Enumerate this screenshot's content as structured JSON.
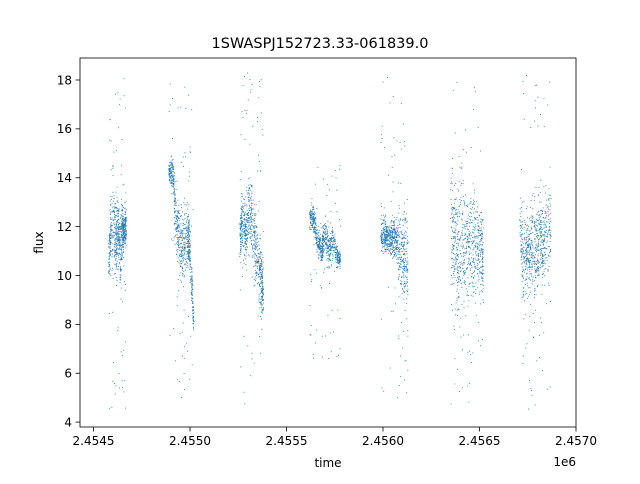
{
  "chart_data": {
    "type": "scatter",
    "title": "1SWASPJ152723.33-061839.0",
    "xlabel": "time",
    "ylabel": "flux",
    "x_offset_label": "1e6",
    "xlim": [
      2.45443,
      2.457
    ],
    "ylim": [
      3.8,
      18.9
    ],
    "x_ticks": [
      2.4545,
      2.455,
      2.4555,
      2.456,
      2.4565,
      2.457
    ],
    "x_tick_labels": [
      "2.4545",
      "2.4550",
      "2.4555",
      "2.4560",
      "2.4565",
      "2.4570"
    ],
    "y_ticks": [
      4,
      6,
      8,
      10,
      12,
      14,
      16,
      18
    ],
    "y_tick_labels": [
      "4",
      "6",
      "8",
      "10",
      "12",
      "14",
      "16",
      "18"
    ],
    "grid": false,
    "marker_color": "#1f77b4",
    "marker_size": "tiny",
    "seasons": [
      {
        "x_start": 2.45458,
        "x_end": 2.45467,
        "y_min": 4.5,
        "y_max": 18.2,
        "core": [
          {
            "x": 2.45458,
            "y_low": 9.6,
            "y_high": 11.6
          },
          {
            "x": 2.45459,
            "y_low": 9.4,
            "y_high": 14.8
          },
          {
            "x": 2.45461,
            "y_low": 9.8,
            "y_high": 14.2
          },
          {
            "x": 2.45462,
            "y_low": 9.0,
            "y_high": 13.8
          },
          {
            "x": 2.45463,
            "y_low": 10.2,
            "y_high": 13.4
          },
          {
            "x": 2.45464,
            "y_low": 8.6,
            "y_high": 12.8
          },
          {
            "x": 2.45465,
            "y_low": 10.5,
            "y_high": 13.6
          },
          {
            "x": 2.45466,
            "y_low": 10.8,
            "y_high": 12.6
          },
          {
            "x": 2.45467,
            "y_low": 11.0,
            "y_high": 13.5
          }
        ]
      },
      {
        "x_start": 2.45489,
        "x_end": 2.45502,
        "y_min": 4.7,
        "y_max": 18.0,
        "core": [
          {
            "x": 2.45489,
            "y_low": 13.8,
            "y_high": 14.8
          },
          {
            "x": 2.45491,
            "y_low": 13.2,
            "y_high": 15.5
          },
          {
            "x": 2.45493,
            "y_low": 10.5,
            "y_high": 13.5
          },
          {
            "x": 2.45495,
            "y_low": 9.5,
            "y_high": 13.0
          },
          {
            "x": 2.45497,
            "y_low": 9.0,
            "y_high": 13.4
          },
          {
            "x": 2.45499,
            "y_low": 10.0,
            "y_high": 13.6
          },
          {
            "x": 2.455,
            "y_low": 9.8,
            "y_high": 12.4
          },
          {
            "x": 2.45502,
            "y_low": 7.0,
            "y_high": 9.0
          }
        ]
      },
      {
        "x_start": 2.45526,
        "x_end": 2.45538,
        "y_min": 4.5,
        "y_max": 18.3,
        "core": [
          {
            "x": 2.45526,
            "y_low": 10.0,
            "y_high": 12.8
          },
          {
            "x": 2.45527,
            "y_low": 10.5,
            "y_high": 14.5
          },
          {
            "x": 2.45529,
            "y_low": 10.2,
            "y_high": 13.2
          },
          {
            "x": 2.45531,
            "y_low": 10.8,
            "y_high": 15.0
          },
          {
            "x": 2.45533,
            "y_low": 9.5,
            "y_high": 13.8
          },
          {
            "x": 2.45535,
            "y_low": 9.0,
            "y_high": 12.5
          },
          {
            "x": 2.45537,
            "y_low": 7.6,
            "y_high": 11.8
          },
          {
            "x": 2.45538,
            "y_low": 8.0,
            "y_high": 11.0
          }
        ]
      },
      {
        "x_start": 2.45562,
        "x_end": 2.45578,
        "y_min": 6.5,
        "y_max": 14.5,
        "core": [
          {
            "x": 2.45562,
            "y_low": 11.8,
            "y_high": 13.0
          },
          {
            "x": 2.45564,
            "y_low": 11.5,
            "y_high": 13.2
          },
          {
            "x": 2.45566,
            "y_low": 10.8,
            "y_high": 12.2
          },
          {
            "x": 2.45568,
            "y_low": 10.2,
            "y_high": 11.8
          },
          {
            "x": 2.4557,
            "y_low": 10.5,
            "y_high": 12.8
          },
          {
            "x": 2.45572,
            "y_low": 10.0,
            "y_high": 12.0
          },
          {
            "x": 2.45574,
            "y_low": 10.5,
            "y_high": 12.5
          },
          {
            "x": 2.45576,
            "y_low": 10.2,
            "y_high": 11.5
          },
          {
            "x": 2.45578,
            "y_low": 10.2,
            "y_high": 11.0
          }
        ]
      },
      {
        "x_start": 2.45599,
        "x_end": 2.45613,
        "y_min": 4.8,
        "y_max": 18.2,
        "core": [
          {
            "x": 2.45599,
            "y_low": 10.8,
            "y_high": 12.8
          },
          {
            "x": 2.45601,
            "y_low": 10.5,
            "y_high": 12.6
          },
          {
            "x": 2.45603,
            "y_low": 10.8,
            "y_high": 12.2
          },
          {
            "x": 2.45605,
            "y_low": 10.2,
            "y_high": 13.0
          },
          {
            "x": 2.45607,
            "y_low": 10.5,
            "y_high": 12.4
          },
          {
            "x": 2.45609,
            "y_low": 8.8,
            "y_high": 13.4
          },
          {
            "x": 2.45611,
            "y_low": 8.2,
            "y_high": 13.8
          },
          {
            "x": 2.45613,
            "y_low": 7.0,
            "y_high": 13.6
          }
        ]
      },
      {
        "x_start": 2.45635,
        "x_end": 2.45652,
        "y_min": 4.5,
        "y_max": 18.2,
        "core": [
          {
            "x": 2.45635,
            "y_low": 8.2,
            "y_high": 16.2
          },
          {
            "x": 2.45637,
            "y_low": 7.8,
            "y_high": 15.2
          },
          {
            "x": 2.45639,
            "y_low": 7.0,
            "y_high": 14.8
          },
          {
            "x": 2.45641,
            "y_low": 7.5,
            "y_high": 15.5
          },
          {
            "x": 2.45643,
            "y_low": 8.0,
            "y_high": 14.6
          },
          {
            "x": 2.45645,
            "y_low": 8.8,
            "y_high": 14.2
          },
          {
            "x": 2.45647,
            "y_low": 7.8,
            "y_high": 14.4
          },
          {
            "x": 2.45649,
            "y_low": 8.5,
            "y_high": 14.0
          },
          {
            "x": 2.45651,
            "y_low": 9.2,
            "y_high": 13.8
          },
          {
            "x": 2.45652,
            "y_low": 8.2,
            "y_high": 12.6
          }
        ]
      },
      {
        "x_start": 2.45671,
        "x_end": 2.45687,
        "y_min": 4.5,
        "y_max": 18.2,
        "core": [
          {
            "x": 2.45671,
            "y_low": 10.5,
            "y_high": 13.8
          },
          {
            "x": 2.45673,
            "y_low": 7.6,
            "y_high": 13.8
          },
          {
            "x": 2.45675,
            "y_low": 8.6,
            "y_high": 12.8
          },
          {
            "x": 2.45677,
            "y_low": 8.8,
            "y_high": 13.4
          },
          {
            "x": 2.45679,
            "y_low": 8.2,
            "y_high": 13.6
          },
          {
            "x": 2.45681,
            "y_low": 9.0,
            "y_high": 14.0
          },
          {
            "x": 2.45683,
            "y_low": 8.5,
            "y_high": 13.8
          },
          {
            "x": 2.45685,
            "y_low": 9.2,
            "y_high": 14.2
          },
          {
            "x": 2.45687,
            "y_low": 9.5,
            "y_high": 14.0
          }
        ]
      }
    ]
  }
}
